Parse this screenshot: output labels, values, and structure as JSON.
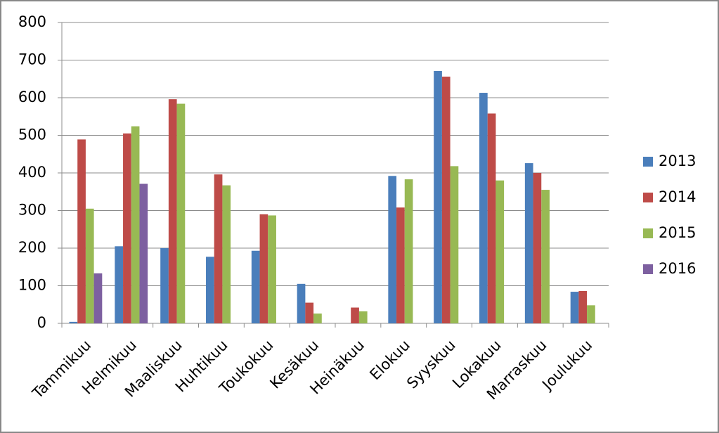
{
  "chart_data": {
    "type": "bar",
    "categories": [
      "Tammikuu",
      "Helmikuu",
      "Maaliskuu",
      "Huhtikuu",
      "Toukokuu",
      "Kesäkuu",
      "Heinäkuu",
      "Elokuu",
      "Syyskuu",
      "Lokakuu",
      "Marraskuu",
      "Joulukuu"
    ],
    "series": [
      {
        "name": "2013",
        "color": "#4a7ebb",
        "values": [
          4,
          205,
          200,
          177,
          193,
          105,
          null,
          392,
          671,
          613,
          426,
          84
        ]
      },
      {
        "name": "2014",
        "color": "#be4b48",
        "values": [
          489,
          505,
          596,
          396,
          290,
          55,
          42,
          308,
          656,
          558,
          400,
          86
        ]
      },
      {
        "name": "2015",
        "color": "#98b954",
        "values": [
          305,
          524,
          584,
          367,
          287,
          26,
          32,
          383,
          418,
          380,
          355,
          48
        ]
      },
      {
        "name": "2016",
        "color": "#7d60a0",
        "values": [
          133,
          371,
          null,
          null,
          null,
          null,
          null,
          null,
          null,
          null,
          null,
          null
        ]
      }
    ],
    "ylim": [
      0,
      800
    ],
    "yticks": [
      0,
      100,
      200,
      300,
      400,
      500,
      600,
      700,
      800
    ],
    "grid": true,
    "legend": "right"
  }
}
